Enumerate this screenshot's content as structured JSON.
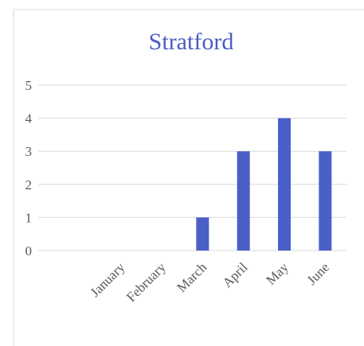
{
  "chart_data": {
    "type": "bar",
    "title": "Stratford",
    "categories": [
      "January",
      "February",
      "March",
      "April",
      "May",
      "June"
    ],
    "values": [
      0,
      0,
      1,
      3,
      4,
      3
    ],
    "color": "#4a5fc8",
    "ylim": [
      0,
      5
    ],
    "yticks": [
      0,
      1,
      2,
      3,
      4,
      5
    ],
    "grid": true
  }
}
